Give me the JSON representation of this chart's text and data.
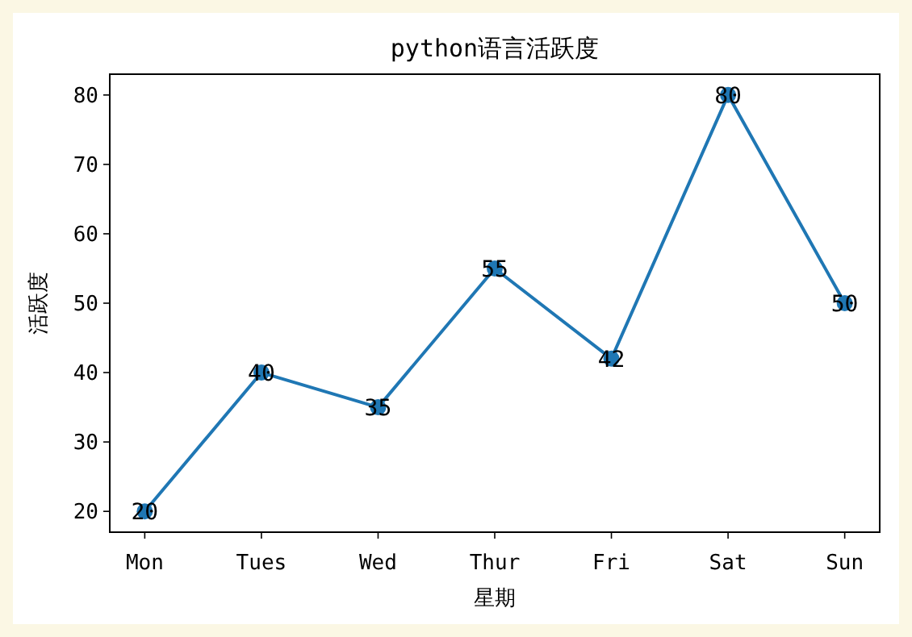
{
  "chart_data": {
    "type": "line",
    "title": "python语言活跃度",
    "xlabel": "星期",
    "ylabel": "活跃度",
    "categories": [
      "Mon",
      "Tues",
      "Wed",
      "Thur",
      "Fri",
      "Sat",
      "Sun"
    ],
    "series": [
      {
        "color": "#1f77b4",
        "values": [
          20,
          40,
          35,
          55,
          42,
          80,
          50
        ]
      }
    ],
    "ylim": [
      17,
      83
    ],
    "yticks": [
      20,
      30,
      40,
      50,
      60,
      70,
      80
    ],
    "marker": "circle",
    "data_labels": true,
    "grid": false
  }
}
